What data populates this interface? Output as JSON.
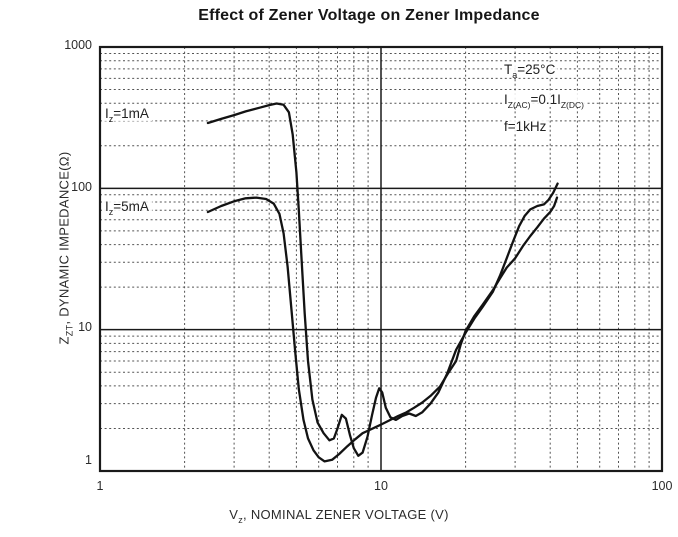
{
  "title": "Effect of Zener Voltage on Zener Impedance",
  "chart_data": {
    "type": "line",
    "title": "Effect of Zener Voltage on Zener Impedance",
    "x_scale": "log",
    "y_scale": "log",
    "xlim": [
      1,
      100
    ],
    "ylim": [
      1,
      1000
    ],
    "grid": "log minor dotted, decade lines solid, framed plot",
    "legend_position": "in-plot text labels at left of each curve",
    "xlabel_parts": {
      "base": "V",
      "sub": "z",
      "rest": ", NOMINAL ZENER VOLTAGE (V)"
    },
    "ylabel_parts": {
      "base": "Z",
      "sub": "ZT",
      "rest": ", DYNAMIC IMPEDANCE(Ω)"
    },
    "x_ticks": [
      "1",
      "10",
      "100"
    ],
    "y_ticks": [
      "1000",
      "100",
      "10",
      "1"
    ],
    "conditions": {
      "line1": {
        "base": "T",
        "sub": "a",
        "rest": "=25°C"
      },
      "line2": {
        "p1": "I",
        "s1": "Z(AC)",
        "p2": "=0.1I",
        "s2": "Z(DC)"
      },
      "line3": "f=1kHz"
    },
    "series": [
      {
        "name": "Iz=1mA",
        "label_parts": {
          "base": "I",
          "sub": "z",
          "rest": "=1mA"
        },
        "points": [
          [
            2.42,
            290
          ],
          [
            2.7,
            310
          ],
          [
            3.0,
            330
          ],
          [
            3.3,
            350
          ],
          [
            3.7,
            372
          ],
          [
            4.0,
            388
          ],
          [
            4.25,
            398
          ],
          [
            4.5,
            390
          ],
          [
            4.7,
            345
          ],
          [
            4.85,
            240
          ],
          [
            5.0,
            130
          ],
          [
            5.1,
            70
          ],
          [
            5.2,
            35
          ],
          [
            5.35,
            13
          ],
          [
            5.5,
            6.0
          ],
          [
            5.7,
            3.2
          ],
          [
            5.95,
            2.2
          ],
          [
            6.25,
            1.85
          ],
          [
            6.55,
            1.65
          ],
          [
            6.8,
            1.7
          ],
          [
            7.0,
            2.0
          ],
          [
            7.25,
            2.5
          ],
          [
            7.5,
            2.35
          ],
          [
            7.75,
            1.8
          ],
          [
            8.0,
            1.45
          ],
          [
            8.3,
            1.28
          ],
          [
            8.6,
            1.35
          ],
          [
            8.95,
            1.75
          ],
          [
            9.3,
            2.5
          ],
          [
            9.6,
            3.3
          ],
          [
            9.85,
            3.85
          ],
          [
            10.1,
            3.6
          ],
          [
            10.4,
            2.8
          ],
          [
            10.8,
            2.4
          ],
          [
            11.3,
            2.3
          ],
          [
            11.9,
            2.45
          ],
          [
            12.6,
            2.55
          ],
          [
            13.3,
            2.45
          ],
          [
            14.0,
            2.6
          ],
          [
            15.0,
            3.0
          ],
          [
            16.0,
            3.6
          ],
          [
            17.2,
            4.9
          ],
          [
            18.5,
            7.2
          ],
          [
            20.0,
            9.5
          ],
          [
            21.5,
            12
          ],
          [
            23.0,
            14.5
          ],
          [
            25.0,
            18.5
          ],
          [
            26.5,
            24
          ],
          [
            28.0,
            32
          ],
          [
            29.5,
            42
          ],
          [
            31.0,
            54
          ],
          [
            32.5,
            64
          ],
          [
            34.0,
            71
          ],
          [
            36.0,
            75
          ],
          [
            38.0,
            77
          ],
          [
            39.5,
            83
          ],
          [
            41.0,
            93
          ],
          [
            42.5,
            108
          ]
        ]
      },
      {
        "name": "Iz=5mA",
        "label_parts": {
          "base": "I",
          "sub": "z",
          "rest": "=5mA"
        },
        "points": [
          [
            2.42,
            68
          ],
          [
            2.7,
            75
          ],
          [
            3.0,
            81
          ],
          [
            3.3,
            85
          ],
          [
            3.6,
            86
          ],
          [
            3.9,
            84
          ],
          [
            4.15,
            78
          ],
          [
            4.35,
            66
          ],
          [
            4.5,
            48
          ],
          [
            4.65,
            28
          ],
          [
            4.8,
            14
          ],
          [
            4.95,
            7.0
          ],
          [
            5.1,
            3.8
          ],
          [
            5.3,
            2.3
          ],
          [
            5.5,
            1.7
          ],
          [
            5.75,
            1.4
          ],
          [
            6.0,
            1.25
          ],
          [
            6.3,
            1.17
          ],
          [
            6.7,
            1.2
          ],
          [
            7.1,
            1.32
          ],
          [
            7.6,
            1.5
          ],
          [
            8.1,
            1.68
          ],
          [
            8.6,
            1.85
          ],
          [
            9.1,
            1.95
          ],
          [
            9.6,
            2.05
          ],
          [
            10.1,
            2.15
          ],
          [
            10.8,
            2.3
          ],
          [
            11.5,
            2.45
          ],
          [
            12.3,
            2.6
          ],
          [
            13.1,
            2.8
          ],
          [
            14.0,
            3.05
          ],
          [
            15.0,
            3.4
          ],
          [
            16.2,
            3.95
          ],
          [
            17.3,
            4.9
          ],
          [
            18.5,
            6.0
          ],
          [
            19.2,
            7.8
          ],
          [
            20.0,
            9.8
          ],
          [
            21.5,
            12.5
          ],
          [
            23.0,
            15
          ],
          [
            25.0,
            19
          ],
          [
            26.5,
            23
          ],
          [
            28.0,
            27.5
          ],
          [
            30.0,
            32
          ],
          [
            32.0,
            39
          ],
          [
            34.0,
            46
          ],
          [
            36.0,
            53
          ],
          [
            38.0,
            61
          ],
          [
            40.0,
            68
          ],
          [
            41.3,
            75
          ],
          [
            42.3,
            86
          ]
        ]
      }
    ]
  }
}
